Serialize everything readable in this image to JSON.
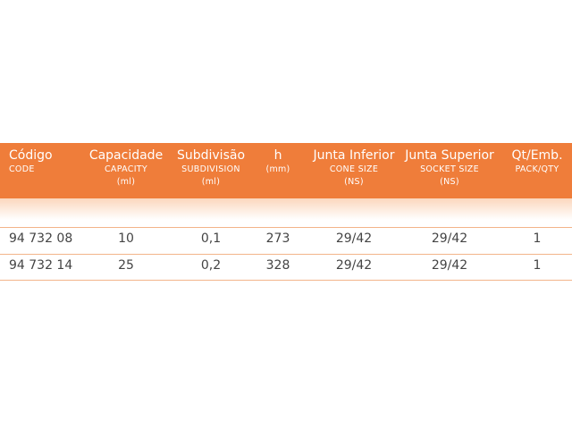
{
  "table": {
    "columns": [
      {
        "title": "Código",
        "sub": [
          "CODE"
        ]
      },
      {
        "title": "Capacidade",
        "sub": [
          "CAPACITY",
          "(ml)"
        ]
      },
      {
        "title": "Subdivisão",
        "sub": [
          "SUBDIVISION",
          "(ml)"
        ]
      },
      {
        "title": "h",
        "sub": [
          "(mm)"
        ]
      },
      {
        "title": "Junta Inferior",
        "sub": [
          "CONE SIZE",
          "(NS)"
        ]
      },
      {
        "title": "Junta Superior",
        "sub": [
          "SOCKET SIZE",
          "(NS)"
        ]
      },
      {
        "title": "Qt/Emb.",
        "sub": [
          "PACK/QTY"
        ]
      }
    ],
    "rows": [
      [
        "94 732 08",
        "10",
        "0,1",
        "273",
        "29/42",
        "29/42",
        "1"
      ],
      [
        "94 732 14",
        "25",
        "0,2",
        "328",
        "29/42",
        "29/42",
        "1"
      ]
    ]
  }
}
